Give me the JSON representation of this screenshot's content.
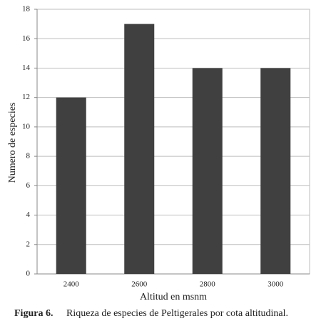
{
  "chart_data": {
    "type": "bar",
    "categories": [
      "2400",
      "2600",
      "2800",
      "3000"
    ],
    "values": [
      12,
      17,
      14,
      14
    ],
    "color": "#404040",
    "ylim": [
      0,
      18
    ],
    "yticks": [
      0,
      2,
      4,
      6,
      8,
      10,
      12,
      14,
      16,
      18
    ],
    "grid": true,
    "y_label": "Numero de especies",
    "x_label": "Altitud en msnm",
    "caption_label": "Figura 6.",
    "caption": "Riqueza de especies de Peltigerales por cota altitudinal."
  }
}
